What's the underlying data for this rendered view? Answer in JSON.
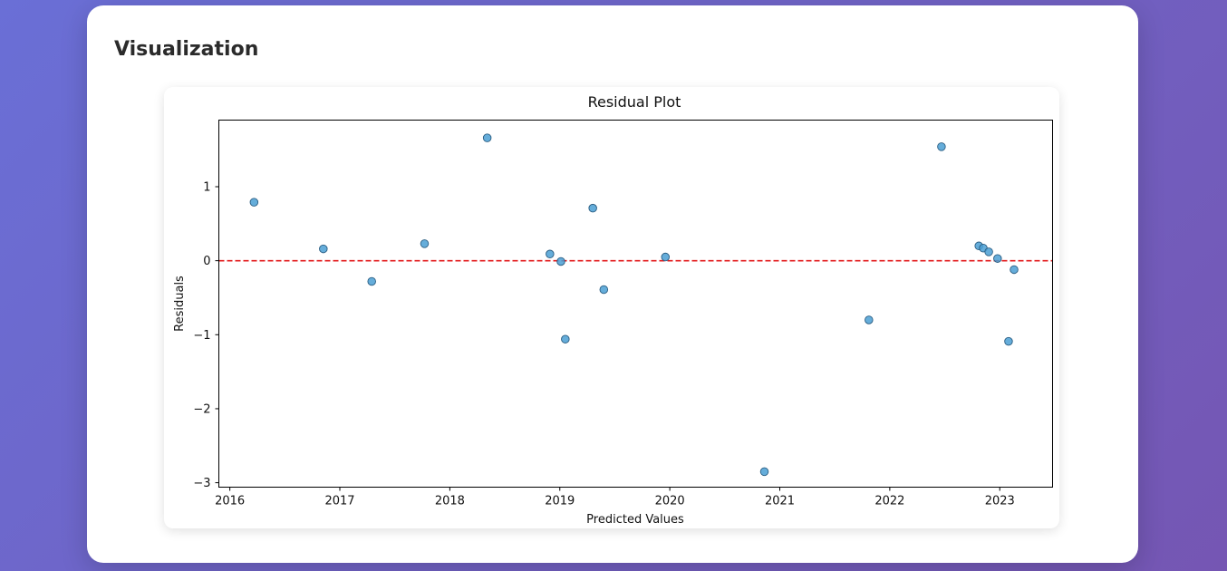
{
  "section": {
    "title": "Visualization"
  },
  "chart_data": {
    "type": "scatter",
    "title": "Residual Plot",
    "xlabel": "Predicted Values",
    "ylabel": "Residuals",
    "xlim": [
      2015.9,
      2023.48
    ],
    "ylim": [
      -3.06,
      1.9
    ],
    "xticks": [
      2016,
      2017,
      2018,
      2019,
      2020,
      2021,
      2022,
      2023
    ],
    "yticks": [
      -3,
      -2,
      -1,
      0,
      1
    ],
    "xtick_labels": [
      "2016",
      "2017",
      "2018",
      "2019",
      "2020",
      "2021",
      "2022",
      "2023"
    ],
    "ytick_labels": [
      "−3",
      "−2",
      "−1",
      "0",
      "1"
    ],
    "reference_line": {
      "y": 0,
      "style": "dashed",
      "color": "#e31a1c"
    },
    "marker_color": "#4a9fd4",
    "marker_edge_color": "#2a5d82",
    "points": [
      {
        "x": 2016.22,
        "y": 0.79
      },
      {
        "x": 2016.85,
        "y": 0.16
      },
      {
        "x": 2017.29,
        "y": -0.28
      },
      {
        "x": 2017.77,
        "y": 0.23
      },
      {
        "x": 2018.34,
        "y": 1.66
      },
      {
        "x": 2018.91,
        "y": 0.09
      },
      {
        "x": 2019.01,
        "y": -0.01
      },
      {
        "x": 2019.05,
        "y": -1.06
      },
      {
        "x": 2019.3,
        "y": 0.71
      },
      {
        "x": 2019.4,
        "y": -0.39
      },
      {
        "x": 2019.96,
        "y": 0.05
      },
      {
        "x": 2020.86,
        "y": -2.85
      },
      {
        "x": 2021.81,
        "y": -0.8
      },
      {
        "x": 2022.47,
        "y": 1.54
      },
      {
        "x": 2022.81,
        "y": 0.2
      },
      {
        "x": 2022.85,
        "y": 0.17
      },
      {
        "x": 2022.9,
        "y": 0.12
      },
      {
        "x": 2022.98,
        "y": 0.03
      },
      {
        "x": 2023.08,
        "y": -1.09
      },
      {
        "x": 2023.13,
        "y": -0.12
      }
    ]
  }
}
